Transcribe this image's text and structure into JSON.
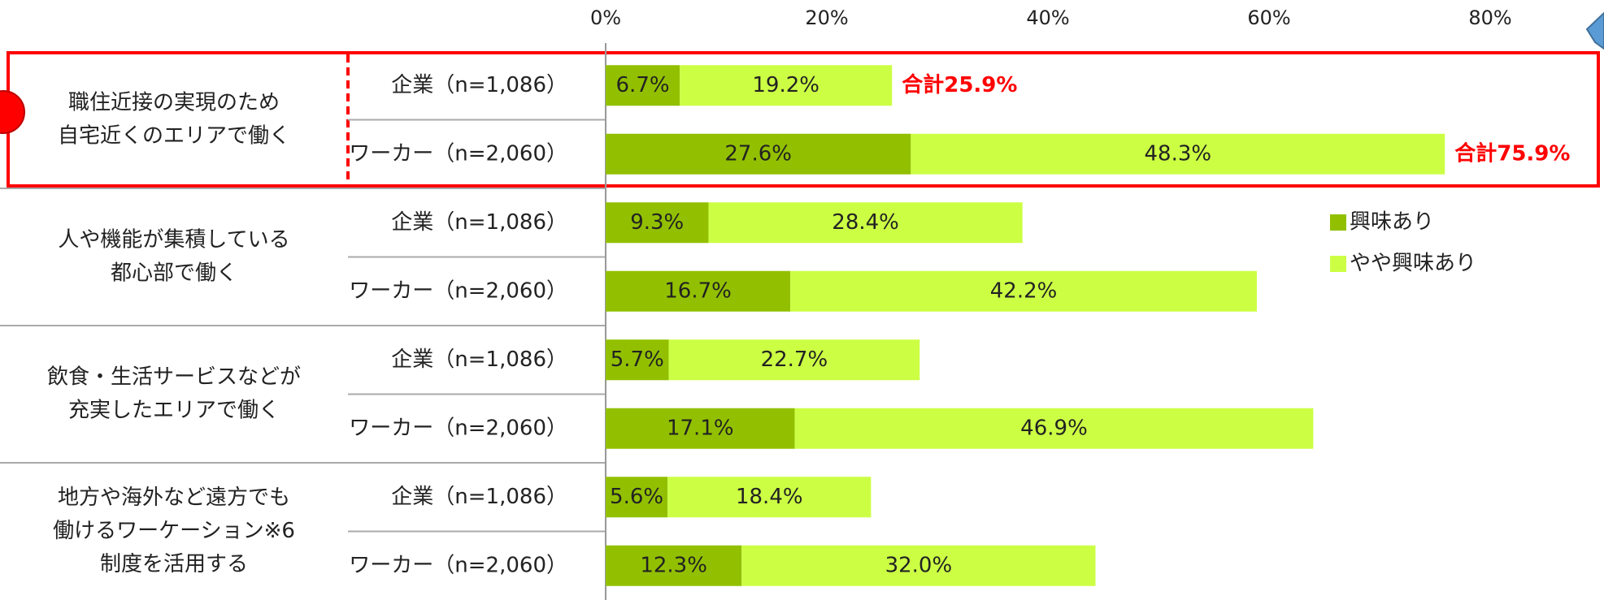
{
  "chart_data": {
    "type": "stacked-bar",
    "orientation": "horizontal",
    "groups": [
      [
        "職住近接の実現のため",
        "自宅近くのエリアで働く"
      ],
      [
        "人や機能が集積している",
        "都心部で働く"
      ],
      [
        "飲食・生活サービスなどが",
        "充実したエリアで働く"
      ],
      [
        "地方や海外など遠方でも",
        "働けるワーケーション※6",
        "制度を活用する"
      ]
    ],
    "categories": [
      "企業（n=1,086）",
      "ワーカー（n=2,060）",
      "企業（n=1,086）",
      "ワーカー（n=2,060）",
      "企業（n=1,086）",
      "ワーカー（n=2,060）",
      "企業（n=1,086）",
      "ワーカー（n=2,060）"
    ],
    "series": [
      {
        "name": "興味あり",
        "color": "#92c000",
        "values": [
          6.7,
          27.6,
          9.3,
          16.7,
          5.7,
          17.1,
          5.6,
          12.3
        ],
        "value_labels": [
          "6.7%",
          "27.6%",
          "9.3%",
          "16.7%",
          "5.7%",
          "17.1%",
          "5.6%",
          "12.3%"
        ]
      },
      {
        "name": "やや興味あり",
        "color": "#ccff44",
        "values": [
          19.2,
          48.3,
          28.4,
          42.2,
          22.7,
          46.9,
          18.4,
          32.0
        ],
        "value_labels": [
          "19.2%",
          "48.3%",
          "28.4%",
          "42.2%",
          "22.7%",
          "46.9%",
          "18.4%",
          "32.0%"
        ]
      }
    ],
    "annotations": [
      "合計25.9%",
      "合計75.9%"
    ],
    "xlim": [
      0,
      90
    ],
    "xticks": [
      {
        "value": 0,
        "label": "0%"
      },
      {
        "value": 20,
        "label": "20%"
      },
      {
        "value": 40,
        "label": "40%"
      },
      {
        "value": 60,
        "label": "60%"
      },
      {
        "value": 80,
        "label": "80%"
      }
    ]
  }
}
